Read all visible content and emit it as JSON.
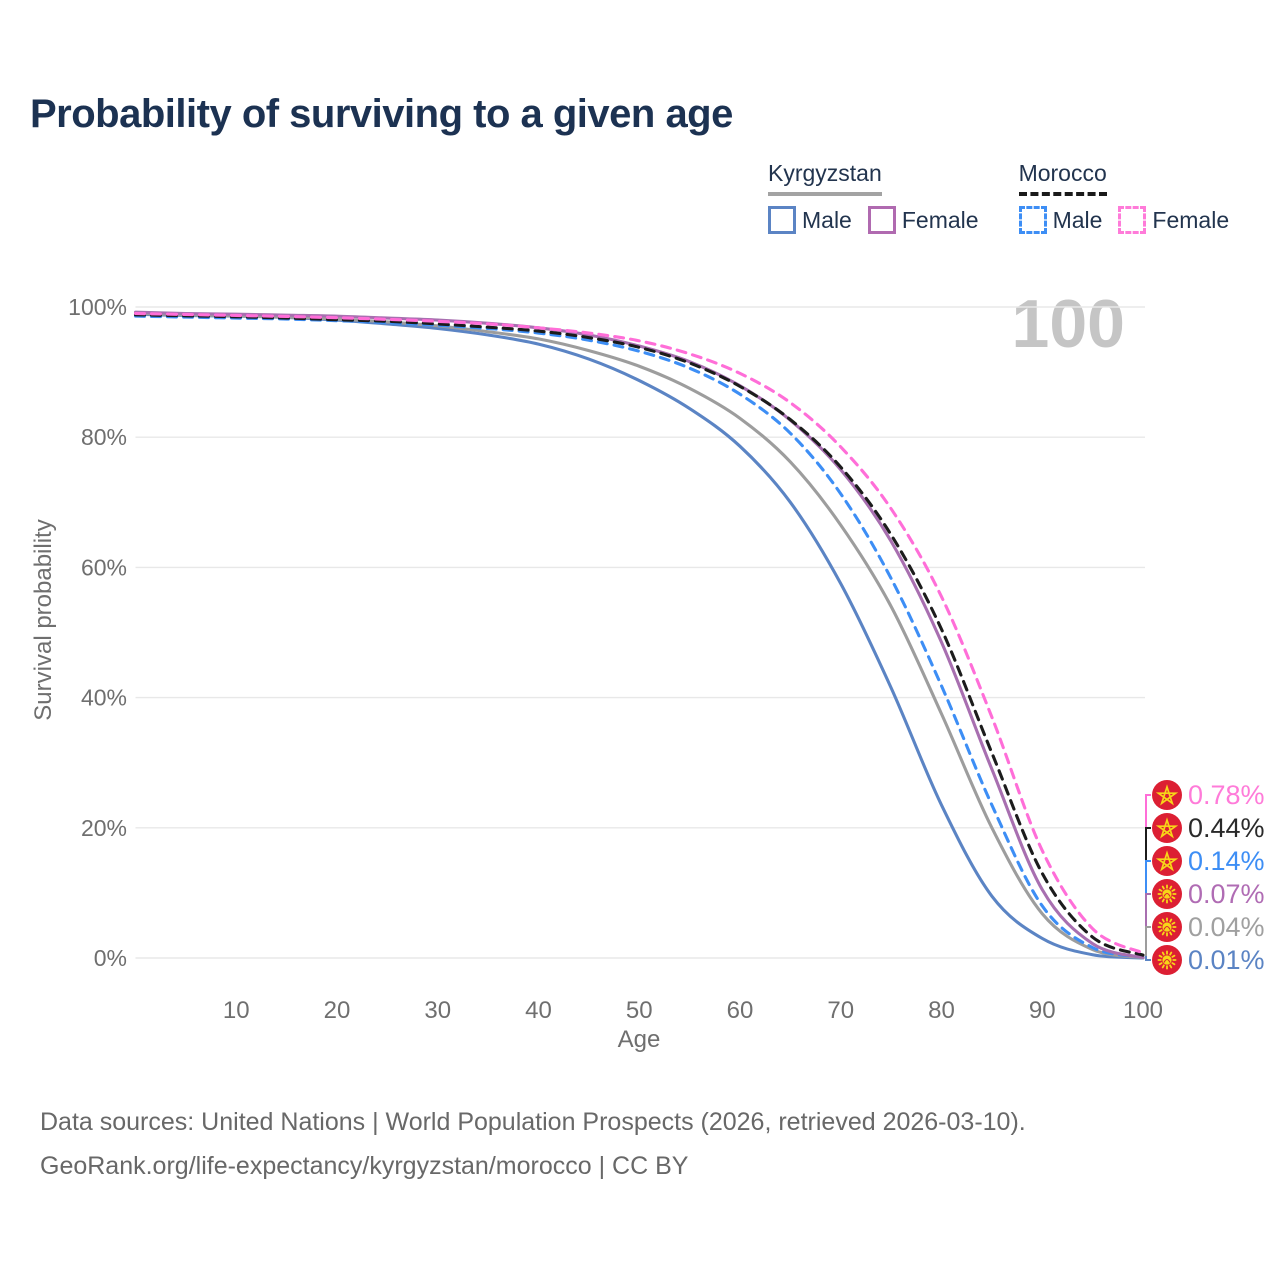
{
  "page": {
    "title": "Probability of surviving to a given age"
  },
  "watermark": "100",
  "legend": {
    "groups": [
      {
        "id": "kyrgyzstan",
        "label": "Kyrgyzstan",
        "underline_color": "#a3a3a3",
        "underline_style": "solid",
        "items": [
          {
            "id": "kyrgyzstan-male",
            "label": "Male",
            "color": "#5b84c4",
            "dash": false
          },
          {
            "id": "kyrgyzstan-female",
            "label": "Female",
            "color": "#b06ab0",
            "dash": false
          }
        ]
      },
      {
        "id": "morocco",
        "label": "Morocco",
        "underline_color": "#1a1a1a",
        "underline_style": "dashed",
        "items": [
          {
            "id": "morocco-male",
            "label": "Male",
            "color": "#3d8ef5",
            "dash": true
          },
          {
            "id": "morocco-female",
            "label": "Female",
            "color": "#ff7bd9",
            "dash": true
          }
        ]
      }
    ]
  },
  "chart_data": {
    "type": "line",
    "title": "Probability of surviving to a given age",
    "xlabel": "Age",
    "ylabel": "Survival probability",
    "xlim": [
      0,
      100
    ],
    "ylim": [
      0,
      100
    ],
    "grid": "horizontal-only",
    "legend_position": "top-right",
    "x_ticks": [
      10,
      20,
      30,
      40,
      50,
      60,
      70,
      80,
      90,
      100
    ],
    "y_ticks": [
      {
        "label": "0%",
        "value": 0
      },
      {
        "label": "20%",
        "value": 20
      },
      {
        "label": "40%",
        "value": 40
      },
      {
        "label": "60%",
        "value": 60
      },
      {
        "label": "80%",
        "value": 80
      },
      {
        "label": "100%",
        "value": 100
      }
    ],
    "x": [
      0,
      5,
      10,
      15,
      20,
      25,
      30,
      35,
      40,
      45,
      50,
      55,
      60,
      65,
      70,
      75,
      80,
      85,
      90,
      95,
      100
    ],
    "series": [
      {
        "id": "kyrgyzstan-male",
        "name": "Kyrgyzstan Male",
        "country": "Kyrgyzstan",
        "sex": "Male",
        "color": "#5b84c4",
        "dash": false,
        "end_rank": 5,
        "end_label": {
          "text": "0.01%",
          "color": "#5b84c4"
        },
        "values": [
          98.9,
          98.7,
          98.6,
          98.4,
          98.0,
          97.4,
          96.7,
          95.7,
          94.3,
          92.0,
          88.7,
          84.4,
          78.6,
          70.0,
          57.5,
          41.5,
          23.5,
          9.5,
          3.0,
          0.5,
          0.01
        ]
      },
      {
        "id": "kyrgyzstan-all",
        "name": "Kyrgyzstan Both sexes",
        "country": "Kyrgyzstan",
        "sex": "All",
        "color": "#9d9d9d",
        "dash": false,
        "end_rank": 4,
        "end_label": {
          "text": "0.04%",
          "color": "#a0a0a0"
        },
        "values": [
          99.0,
          98.8,
          98.65,
          98.45,
          98.15,
          97.7,
          97.1,
          96.2,
          95.1,
          93.3,
          90.9,
          87.5,
          82.9,
          76.2,
          66.5,
          54.0,
          37.5,
          20.0,
          6.8,
          1.3,
          0.04
        ]
      },
      {
        "id": "morocco-male",
        "name": "Morocco Male",
        "country": "Morocco",
        "sex": "Male",
        "color": "#3d8ef5",
        "dash": true,
        "end_rank": 2,
        "end_label": {
          "text": "0.14%",
          "color": "#3d8ef5"
        },
        "values": [
          98.6,
          98.45,
          98.3,
          98.15,
          97.9,
          97.6,
          97.2,
          96.7,
          96.0,
          94.9,
          93.2,
          90.6,
          86.6,
          80.6,
          71.3,
          58.3,
          41.8,
          23.5,
          8.0,
          1.6,
          0.14
        ]
      },
      {
        "id": "kyrgyzstan-female",
        "name": "Kyrgyzstan Female",
        "country": "Kyrgyzstan",
        "sex": "Female",
        "color": "#a86fb0",
        "dash": false,
        "end_rank": 3,
        "end_label": {
          "text": "0.07%",
          "color": "#b06cb4"
        },
        "values": [
          99.2,
          99.0,
          98.9,
          98.75,
          98.6,
          98.3,
          98.0,
          97.5,
          96.8,
          95.7,
          94.0,
          91.6,
          87.9,
          82.6,
          75.0,
          64.0,
          48.5,
          29.0,
          10.5,
          2.2,
          0.07
        ]
      },
      {
        "id": "morocco-all",
        "name": "Morocco Both sexes",
        "country": "Morocco",
        "sex": "All",
        "color": "#1c1c1c",
        "dash": true,
        "end_rank": 1,
        "end_label": {
          "text": "0.44%",
          "color": "#2a2a2a"
        },
        "values": [
          98.8,
          98.65,
          98.5,
          98.3,
          98.05,
          97.8,
          97.4,
          96.9,
          96.3,
          95.3,
          93.8,
          91.4,
          87.8,
          82.7,
          75.4,
          65.0,
          50.5,
          31.5,
          13.0,
          3.2,
          0.44
        ]
      },
      {
        "id": "morocco-female",
        "name": "Morocco Female",
        "country": "Morocco",
        "sex": "Female",
        "color": "#ff6ed8",
        "dash": true,
        "end_rank": 0,
        "end_label": {
          "text": "0.78%",
          "color": "#ff7bd9"
        },
        "values": [
          99.0,
          98.85,
          98.7,
          98.55,
          98.35,
          98.1,
          97.8,
          97.4,
          96.8,
          96.0,
          94.8,
          92.8,
          89.8,
          85.3,
          78.5,
          69.0,
          55.5,
          37.0,
          16.5,
          4.5,
          0.78
        ]
      }
    ],
    "flag_colors": {
      "red": "#dc1f33",
      "gold": "#f7d618"
    }
  },
  "footer": {
    "line1": "Data sources: United Nations | World Population Prospects (2026, retrieved 2026-03-10).",
    "line2": "GeoRank.org/life-expectancy/kyrgyzstan/morocco | CC BY"
  }
}
